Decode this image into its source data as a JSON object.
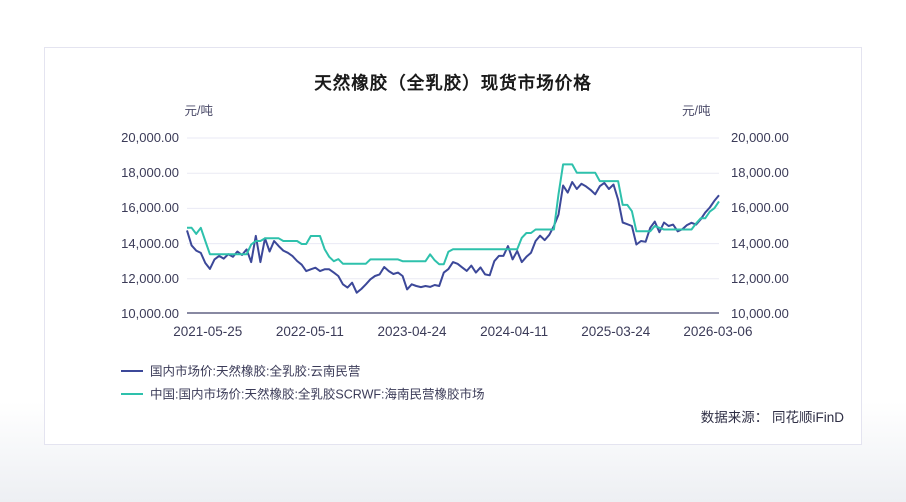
{
  "page": {
    "source_label": "数据来源： 同花顺iFinD"
  },
  "chart_data": {
    "type": "line",
    "title": "天然橡胶（全乳胶）现货市场价格",
    "unit_label": "元/吨",
    "ylabel": "元/吨",
    "ylim": [
      10000,
      20000
    ],
    "y_ticks": [
      "20,000.00",
      "18,000.00",
      "16,000.00",
      "14,000.00",
      "12,000.00",
      "10,000.00"
    ],
    "x_ticks": [
      "2021-05-25",
      "2022-05-11",
      "2023-04-24",
      "2024-04-11",
      "2025-03-24",
      "2026-03-06"
    ],
    "x_start_date": "2021-05-25",
    "x_end_date": "2026-03-06",
    "sample_interval_days": 15,
    "grid": "horizontal",
    "legend_position": "bottom-left",
    "series": [
      {
        "name": "国内市场价:天然橡胶:全乳胶:云南民营",
        "color": "#3c4899",
        "values": [
          14750,
          13900,
          13600,
          13470,
          12900,
          12560,
          13100,
          13300,
          13150,
          13400,
          13250,
          13550,
          13350,
          13670,
          12950,
          14440,
          12950,
          14300,
          13550,
          14150,
          13860,
          13600,
          13480,
          13290,
          13010,
          12800,
          12440,
          12540,
          12630,
          12440,
          12540,
          12540,
          12350,
          12160,
          11690,
          11500,
          11780,
          11210,
          11420,
          11690,
          11970,
          12160,
          12250,
          12670,
          12440,
          12270,
          12350,
          12160,
          11400,
          11690,
          11590,
          11530,
          11590,
          11540,
          11650,
          11590,
          12350,
          12550,
          12950,
          12850,
          12650,
          12450,
          12750,
          12350,
          12650,
          12250,
          12200,
          13000,
          13300,
          13300,
          13860,
          13100,
          13580,
          12950,
          13250,
          13480,
          14150,
          14450,
          14200,
          14500,
          15000,
          15650,
          17300,
          16900,
          17500,
          17100,
          17400,
          17250,
          17050,
          16800,
          17260,
          17450,
          17100,
          17360,
          16500,
          15200,
          15100,
          15000,
          13950,
          14150,
          14100,
          14900,
          15250,
          14650,
          15200,
          15000,
          15080,
          14700,
          14820,
          15050,
          15180,
          15080,
          15380,
          15760,
          16050,
          16430,
          16750
        ]
      },
      {
        "name": "中国:国内市场价:天然橡胶:全乳胶SCRWF:海南民营橡胶市场",
        "color": "#2ec1ac",
        "values": [
          14900,
          14900,
          14550,
          14900,
          14150,
          13400,
          13400,
          13400,
          13400,
          13400,
          13400,
          13400,
          13400,
          13400,
          13950,
          14150,
          14150,
          14300,
          14300,
          14300,
          14300,
          14150,
          14150,
          14150,
          14150,
          13980,
          13980,
          14430,
          14430,
          14430,
          13690,
          13250,
          13000,
          13120,
          12860,
          12860,
          12860,
          12860,
          12860,
          12860,
          13100,
          13100,
          13100,
          13100,
          13100,
          13100,
          13100,
          13000,
          13000,
          13000,
          13000,
          13000,
          13000,
          13390,
          13050,
          12830,
          12830,
          13540,
          13680,
          13680,
          13680,
          13680,
          13680,
          13680,
          13680,
          13680,
          13680,
          13680,
          13680,
          13680,
          13680,
          13680,
          13680,
          14330,
          14600,
          14600,
          14800,
          14800,
          14800,
          14800,
          14800,
          16800,
          18500,
          18500,
          18500,
          18030,
          18030,
          18030,
          18030,
          18030,
          17550,
          17550,
          17550,
          17550,
          17550,
          16200,
          16200,
          15840,
          14700,
          14700,
          14700,
          14700,
          15000,
          14900,
          14800,
          14800,
          14800,
          14800,
          14800,
          14800,
          14800,
          15150,
          15440,
          15440,
          15820,
          16010,
          16400
        ]
      }
    ]
  }
}
